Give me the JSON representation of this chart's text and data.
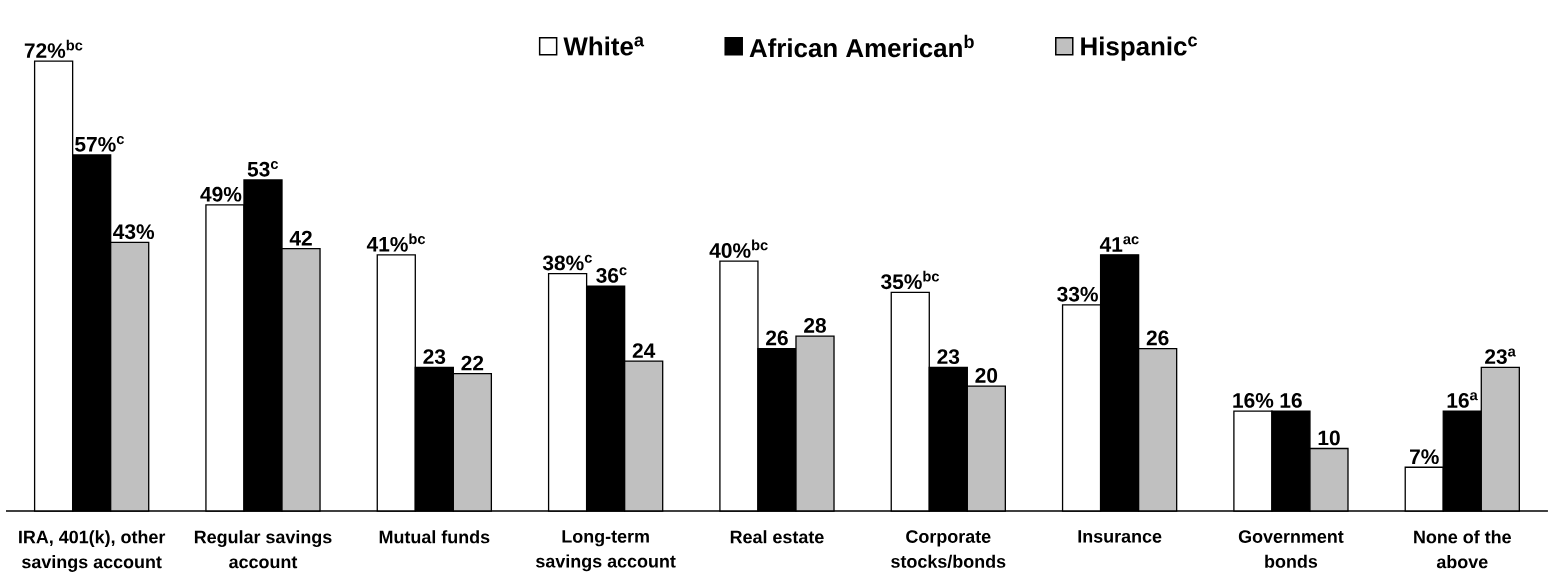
{
  "chart_data": {
    "type": "bar",
    "categories": [
      "IRA, 401(k), other savings account",
      "Regular savings account",
      "Mutual funds",
      "Long-term savings account",
      "Real estate",
      "Corporate stocks/bonds",
      "Insurance",
      "Government bonds",
      "None of the above"
    ],
    "series": [
      {
        "name": "White$^{a}$",
        "color": "#ffffff",
        "values": [
          72,
          49,
          41,
          38,
          40,
          35,
          33,
          16,
          7
        ],
        "value_labels": [
          "72%$^{bc}$",
          "49%",
          "41%$^{bc}$",
          "38%$^{c}$",
          "40%$^{bc}$",
          "35%$^{bc}$",
          "33%",
          "16%",
          "7%"
        ]
      },
      {
        "name": "African American$^{b}$",
        "color": "#000000",
        "values": [
          57,
          53,
          23,
          36,
          26,
          23,
          41,
          16,
          16
        ],
        "value_labels": [
          "57%$^{c}$",
          "53$^{c}$",
          "23",
          "36$^{c}$",
          "26",
          "23",
          "41$^{ac}$",
          "16",
          "16$^{a}$"
        ]
      },
      {
        "name": "Hispanic$^{c}$",
        "color": "#c0c0c0",
        "values": [
          43,
          42,
          22,
          24,
          28,
          20,
          26,
          10,
          23
        ],
        "value_labels": [
          "43%",
          "42",
          "22",
          "24",
          "28",
          "20",
          "26",
          "10",
          "23$^{a}$"
        ]
      }
    ],
    "legend": "top"
  }
}
